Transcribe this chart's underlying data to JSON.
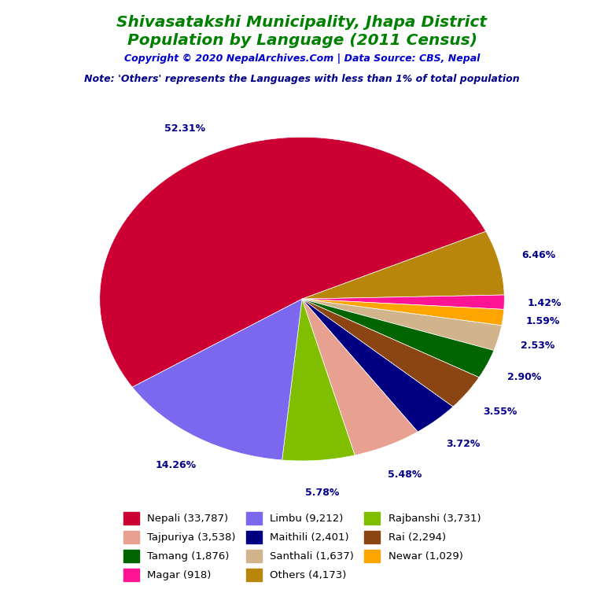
{
  "title_line1": "Shivasatakshi Municipality, Jhapa District",
  "title_line2": "Population by Language (2011 Census)",
  "copyright": "Copyright © 2020 NepalArchives.Com | Data Source: CBS, Nepal",
  "note": "Note: 'Others' represents the Languages with less than 1% of total population",
  "title_color": "#008000",
  "copyright_color": "#0000CD",
  "note_color": "#00008B",
  "pie_data": [
    {
      "label": "Nepali (33,787)",
      "pct": 52.31,
      "color": "#CC0033"
    },
    {
      "label": "Others (4,173)",
      "pct": 6.46,
      "color": "#B8860B"
    },
    {
      "label": "Magar (918)",
      "pct": 1.42,
      "color": "#FF1493"
    },
    {
      "label": "Newar (1,029)",
      "pct": 1.59,
      "color": "#FFA500"
    },
    {
      "label": "Santhali (1,637)",
      "pct": 2.53,
      "color": "#D2B48C"
    },
    {
      "label": "Tamang (1,876)",
      "pct": 2.9,
      "color": "#006400"
    },
    {
      "label": "Rai (2,294)",
      "pct": 3.55,
      "color": "#8B4513"
    },
    {
      "label": "Maithili (2,401)",
      "pct": 3.72,
      "color": "#000080"
    },
    {
      "label": "Tajpuriya (3,538)",
      "pct": 5.48,
      "color": "#E8A090"
    },
    {
      "label": "Rajbanshi (3,731)",
      "pct": 5.78,
      "color": "#7FBF00"
    },
    {
      "label": "Limbu (9,212)",
      "pct": 14.26,
      "color": "#7B68EE"
    }
  ],
  "legend_order": [
    {
      "label": "Nepali (33,787)",
      "color": "#CC0033"
    },
    {
      "label": "Tajpuriya (3,538)",
      "color": "#E8A090"
    },
    {
      "label": "Tamang (1,876)",
      "color": "#006400"
    },
    {
      "label": "Magar (918)",
      "color": "#FF1493"
    },
    {
      "label": "Limbu (9,212)",
      "color": "#7B68EE"
    },
    {
      "label": "Maithili (2,401)",
      "color": "#000080"
    },
    {
      "label": "Santhali (1,637)",
      "color": "#D2B48C"
    },
    {
      "label": "Others (4,173)",
      "color": "#B8860B"
    },
    {
      "label": "Rajbanshi (3,731)",
      "color": "#7FBF00"
    },
    {
      "label": "Rai (2,294)",
      "color": "#8B4513"
    },
    {
      "label": "Newar (1,029)",
      "color": "#FFA500"
    }
  ],
  "pct_label_color": "#00008B",
  "background_color": "#FFFFFF",
  "startangle": 90,
  "pct_distance": 1.2
}
